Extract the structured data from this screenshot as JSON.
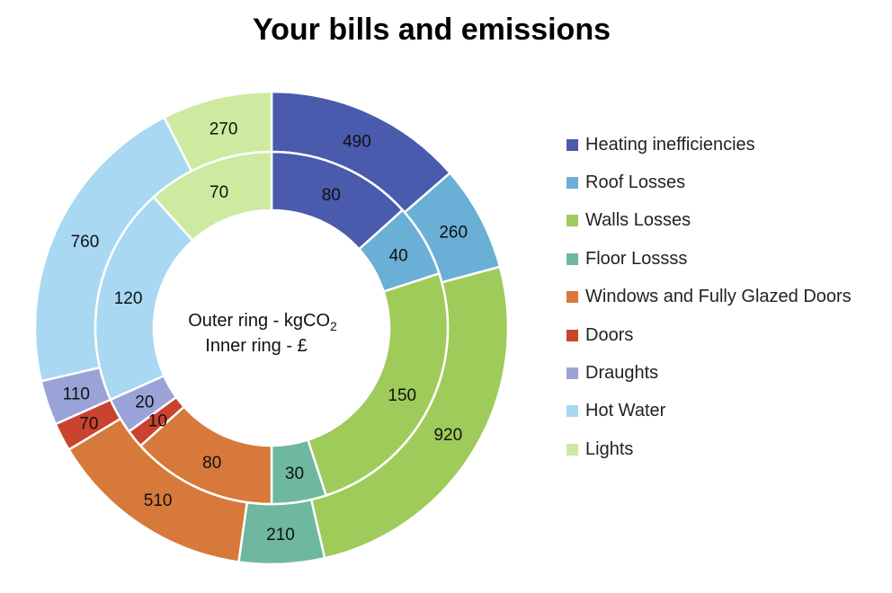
{
  "chart_data": {
    "type": "donut",
    "title": "Your bills and emissions",
    "center_text": {
      "line1_prefix": "Outer ring - kgCO",
      "line1_sub": "2",
      "line2": "Inner ring - £"
    },
    "categories": [
      "Heating inefficiencies",
      "Roof Losses",
      "Walls Losses",
      "Floor Lossss",
      "Windows and Fully Glazed Doors",
      "Doors",
      "Draughts",
      "Hot Water",
      "Lights"
    ],
    "colors": [
      "#4a5aad",
      "#6aafd6",
      "#9ecb5a",
      "#6db89e",
      "#d6793a",
      "#c9432e",
      "#9aa3d8",
      "#a8d8f2",
      "#cdeaa0"
    ],
    "series": [
      {
        "name": "Outer ring - kgCO2",
        "ring": "outer",
        "values": [
          490,
          260,
          920,
          210,
          510,
          70,
          110,
          760,
          270
        ]
      },
      {
        "name": "Inner ring - £",
        "ring": "inner",
        "values": [
          80,
          40,
          150,
          30,
          80,
          10,
          20,
          120,
          70
        ]
      }
    ],
    "legend_position": "right"
  }
}
